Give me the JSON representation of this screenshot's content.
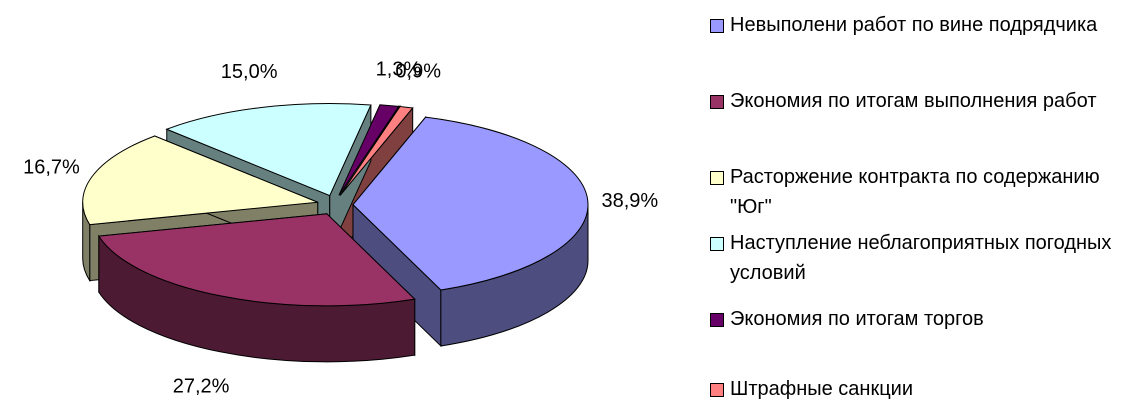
{
  "chart_data": {
    "type": "pie",
    "title": "",
    "three_d": true,
    "labels": [
      "Невыполени работ по вине подрядчика",
      "Экономия по итогам выполнения работ",
      "Расторжение контракта по содержанию \"Юг\"",
      "Наступление неблагоприятных погодных условий",
      "Экономия по итогам торгов",
      "Штрафные санкции"
    ],
    "values": [
      38.9,
      27.2,
      16.7,
      15.0,
      1.3,
      0.9
    ],
    "value_labels": [
      "38,9%",
      "27,2%",
      "16,7%",
      "15,0%",
      "1,3%",
      "0,9%"
    ],
    "colors": [
      "#9999FF",
      "#993366",
      "#FFFFCC",
      "#CCFFFF",
      "#660066",
      "#FF8080"
    ],
    "exploded": true,
    "legend_position": "right"
  }
}
